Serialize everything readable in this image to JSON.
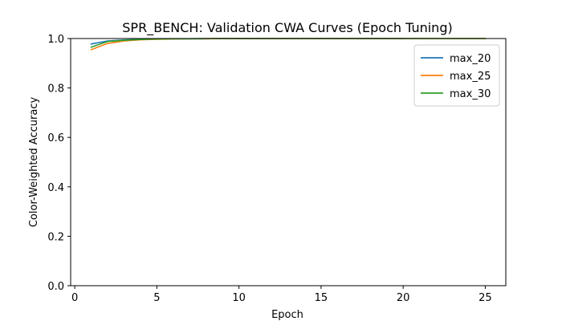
{
  "chart_data": {
    "type": "line",
    "title": "SPR_BENCH: Validation CWA Curves (Epoch Tuning)",
    "xlabel": "Epoch",
    "ylabel": "Color-Weighted Accuracy",
    "xlim": [
      -0.25,
      26.25
    ],
    "ylim": [
      0.0,
      1.0
    ],
    "xticks": [
      0,
      5,
      10,
      15,
      20,
      25
    ],
    "yticks": [
      0.0,
      0.2,
      0.4,
      0.6,
      0.8,
      1.0
    ],
    "xtick_labels": [
      "0",
      "5",
      "10",
      "15",
      "20",
      "25"
    ],
    "ytick_labels": [
      "0.0",
      "0.2",
      "0.4",
      "0.6",
      "0.8",
      "1.0"
    ],
    "grid": false,
    "legend": "top-right",
    "series": [
      {
        "name": "max_20",
        "color": "#1f77b4",
        "x": [
          1,
          2,
          3,
          4,
          5,
          6,
          7,
          8,
          9,
          10,
          11,
          12,
          13,
          14,
          15,
          16,
          17,
          18,
          19,
          20
        ],
        "values": [
          0.978,
          0.99,
          0.994,
          0.997,
          0.998,
          0.999,
          0.999,
          0.999,
          1.0,
          1.0,
          1.0,
          1.0,
          1.0,
          1.0,
          1.0,
          1.0,
          1.0,
          1.0,
          1.0,
          1.0
        ]
      },
      {
        "name": "max_25",
        "color": "#ff7f0e",
        "x": [
          1,
          2,
          3,
          4,
          5,
          6,
          7,
          8,
          9,
          10,
          11,
          12,
          13,
          14,
          15,
          16,
          17,
          18,
          19,
          20,
          21,
          22,
          23,
          24,
          25
        ],
        "values": [
          0.955,
          0.98,
          0.99,
          0.995,
          0.997,
          0.998,
          0.999,
          0.999,
          1.0,
          1.0,
          1.0,
          1.0,
          1.0,
          1.0,
          1.0,
          1.0,
          1.0,
          1.0,
          1.0,
          1.0,
          1.0,
          1.0,
          1.0,
          1.0,
          1.0
        ]
      },
      {
        "name": "max_30",
        "color": "#2ca02c",
        "x": [
          1,
          2,
          3,
          4,
          5,
          6,
          7,
          8,
          9,
          10,
          11,
          12,
          13,
          14,
          15,
          16,
          17,
          18,
          19,
          20,
          21,
          22,
          23,
          24,
          25
        ],
        "values": [
          0.965,
          0.988,
          0.993,
          0.996,
          0.998,
          0.999,
          0.999,
          1.0,
          1.0,
          1.0,
          1.0,
          1.0,
          1.0,
          1.0,
          1.0,
          1.0,
          1.0,
          1.0,
          1.0,
          1.0,
          1.0,
          1.0,
          1.0,
          1.0,
          1.0
        ]
      }
    ]
  }
}
